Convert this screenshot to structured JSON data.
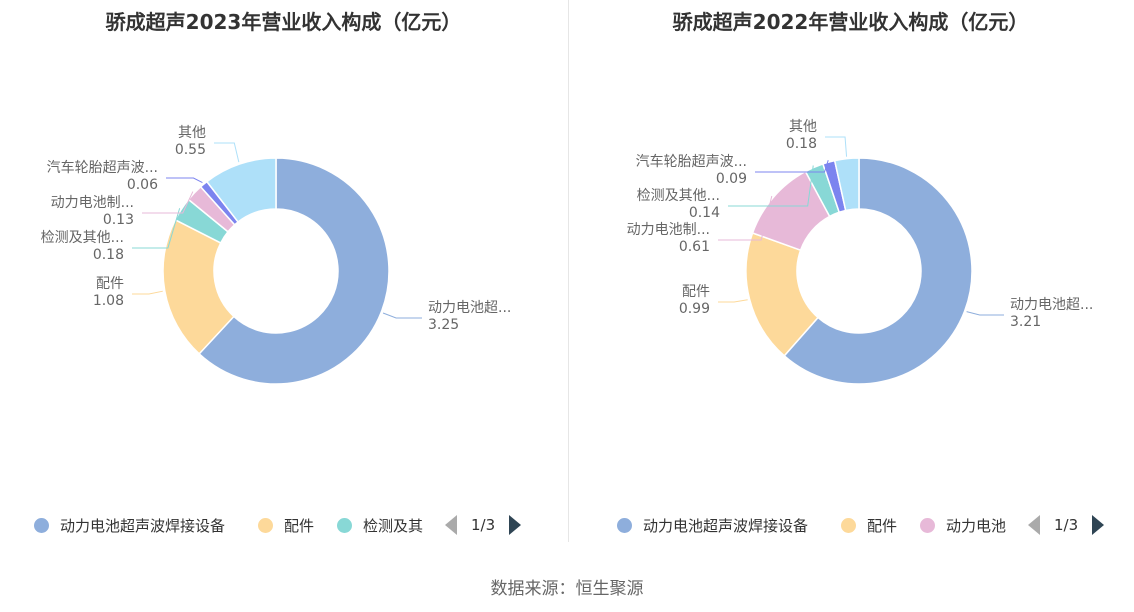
{
  "source_text": "数据来源：恒生聚源",
  "chart_data": [
    {
      "type": "pie",
      "donut": true,
      "title": "骄成超声2023年营业收入构成（亿元）",
      "unit": "亿元",
      "slices": [
        {
          "name": "动力电池超声波焊接设备",
          "label_short": "动力电池超...",
          "value": 3.25,
          "value_text": "3.25",
          "color": "#8eaedc"
        },
        {
          "name": "配件",
          "label_short": "配件",
          "value": 1.08,
          "value_text": "1.08",
          "color": "#fdd99a"
        },
        {
          "name": "检测及其他",
          "label_short": "检测及其他...",
          "value": 0.18,
          "value_text": "0.18",
          "color": "#88d8d6"
        },
        {
          "name": "动力电池制...",
          "label_short": "动力电池制...",
          "value": 0.13,
          "value_text": "0.13",
          "color": "#e7b9d8"
        },
        {
          "name": "汽车轮胎超声波...",
          "label_short": "汽车轮胎超声波...",
          "value": 0.06,
          "value_text": "0.06",
          "color": "#7c84ef"
        },
        {
          "name": "其他",
          "label_short": "其他",
          "value": 0.55,
          "value_text": "0.55",
          "color": "#aee0f9"
        }
      ],
      "legend": {
        "items": [
          {
            "label": "动力电池超声波焊接设备",
            "color": "#8eaedc"
          },
          {
            "label": "配件",
            "color": "#fdd99a"
          },
          {
            "label": "检测及其",
            "color": "#88d8d6"
          }
        ],
        "page": "1/3"
      }
    },
    {
      "type": "pie",
      "donut": true,
      "title": "骄成超声2022年营业收入构成（亿元）",
      "unit": "亿元",
      "slices": [
        {
          "name": "动力电池超声波焊接设备",
          "label_short": "动力电池超...",
          "value": 3.21,
          "value_text": "3.21",
          "color": "#8eaedc"
        },
        {
          "name": "配件",
          "label_short": "配件",
          "value": 0.99,
          "value_text": "0.99",
          "color": "#fdd99a"
        },
        {
          "name": "动力电池制...",
          "label_short": "动力电池制...",
          "value": 0.61,
          "value_text": "0.61",
          "color": "#e7b9d8"
        },
        {
          "name": "检测及其他",
          "label_short": "检测及其他...",
          "value": 0.14,
          "value_text": "0.14",
          "color": "#88d8d6"
        },
        {
          "name": "汽车轮胎超声波...",
          "label_short": "汽车轮胎超声波...",
          "value": 0.09,
          "value_text": "0.09",
          "color": "#7c84ef"
        },
        {
          "name": "其他",
          "label_short": "其他",
          "value": 0.18,
          "value_text": "0.18",
          "color": "#aee0f9"
        }
      ],
      "legend": {
        "items": [
          {
            "label": "动力电池超声波焊接设备",
            "color": "#8eaedc"
          },
          {
            "label": "配件",
            "color": "#fdd99a"
          },
          {
            "label": "动力电池",
            "color": "#e7b9d8"
          }
        ],
        "page": "1/3"
      }
    }
  ]
}
